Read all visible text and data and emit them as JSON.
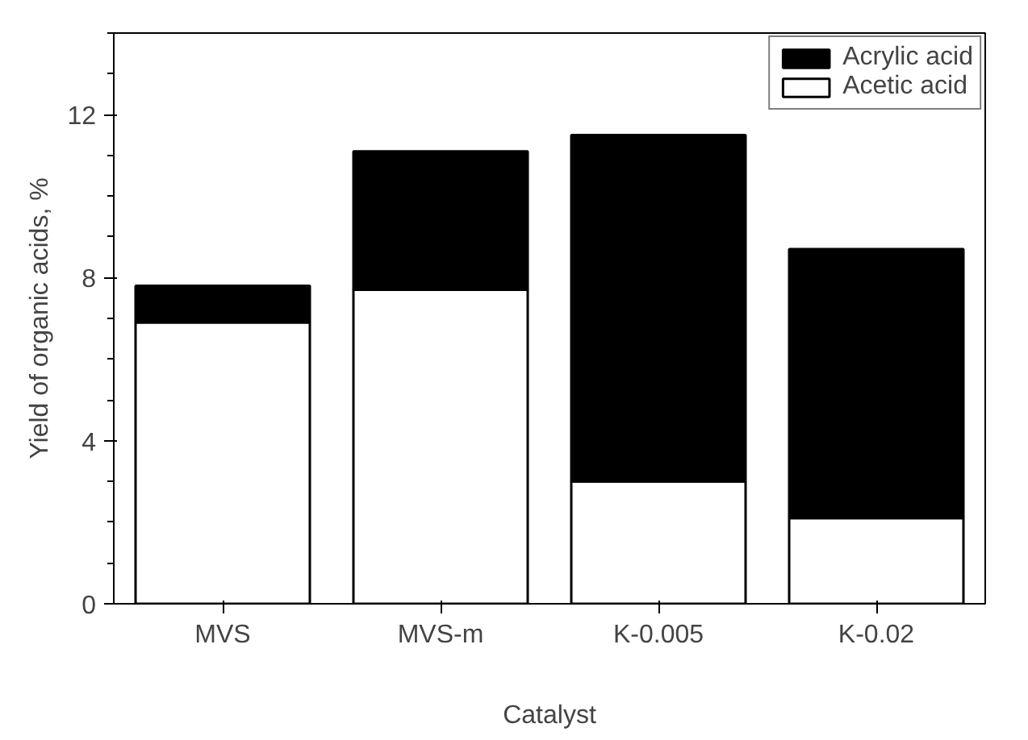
{
  "chart_data": {
    "type": "bar",
    "stacked": true,
    "xlabel": "Catalyst",
    "ylabel": "Yield of organic acids, %",
    "categories": [
      "MVS",
      "MVS-m",
      "K-0.005",
      "K-0.02"
    ],
    "series": [
      {
        "name": "Acetic acid",
        "color": "#ffffff",
        "values": [
          6.9,
          7.7,
          3.0,
          2.1
        ]
      },
      {
        "name": "Acrylic acid",
        "color": "#000000",
        "values": [
          0.9,
          3.4,
          8.5,
          6.6
        ]
      }
    ],
    "ylim": [
      0,
      14
    ],
    "yticks": [
      0,
      4,
      8,
      12
    ],
    "grid": false,
    "legend": "top right"
  }
}
